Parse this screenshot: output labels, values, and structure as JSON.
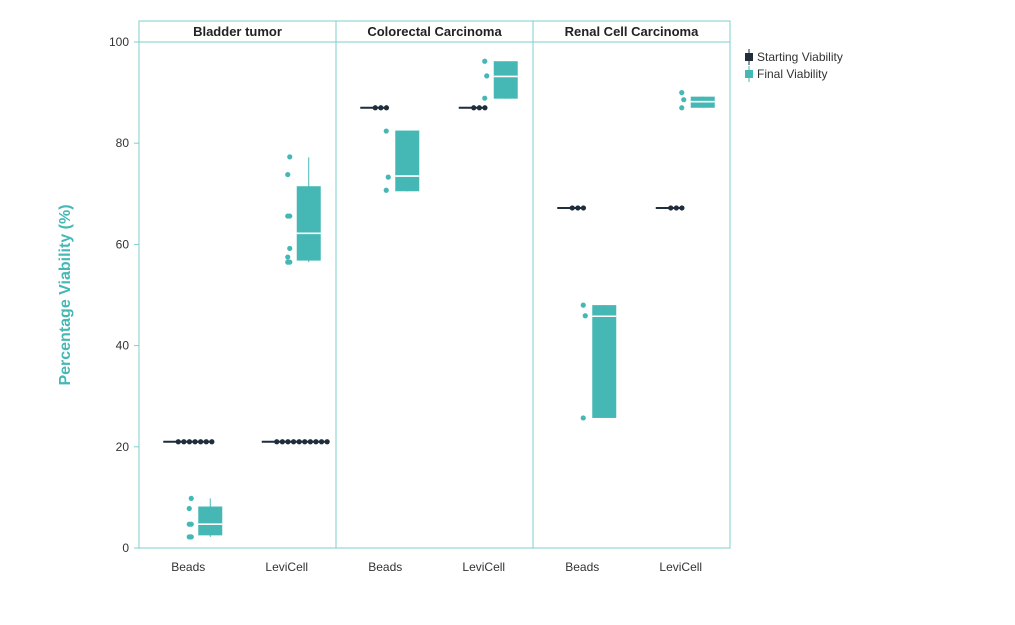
{
  "chart_data": {
    "type": "box",
    "title": "",
    "ylabel": "Percentage Viability (%)",
    "xlabel": "",
    "ylim": [
      0,
      100
    ],
    "yticks": [
      0,
      20,
      40,
      60,
      80,
      100
    ],
    "grid": false,
    "legend_position": "top-right",
    "categories": [
      "Beads",
      "LeviCell"
    ],
    "panels": [
      {
        "name": "Bladder tumor",
        "groups": [
          {
            "category": "Beads",
            "starting_viability": {
              "value": 21,
              "points": [
                21,
                21,
                21,
                21,
                21,
                21,
                21
              ]
            },
            "final_viability": {
              "whisker_low": 2.2,
              "q1": 2.5,
              "median": 4.7,
              "q3": 8.2,
              "whisker_high": 9.8,
              "points": [
                2.2,
                2.2,
                4.7,
                4.7,
                7.8,
                9.8
              ]
            }
          },
          {
            "category": "LeviCell",
            "starting_viability": {
              "value": 21,
              "points": [
                21,
                21,
                21,
                21,
                21,
                21,
                21,
                21,
                21,
                21
              ]
            },
            "final_viability": {
              "whisker_low": 56.5,
              "q1": 56.8,
              "median": 62.2,
              "q3": 71.5,
              "whisker_high": 77.2,
              "points": [
                56.5,
                56.5,
                57.5,
                59.2,
                65.6,
                65.6,
                73.8,
                77.3
              ]
            }
          }
        ]
      },
      {
        "name": "Colorectal Carcinoma",
        "groups": [
          {
            "category": "Beads",
            "starting_viability": {
              "value": 87,
              "points": [
                87,
                87,
                87
              ]
            },
            "final_viability": {
              "whisker_low": 70.5,
              "q1": 70.5,
              "median": 73.5,
              "q3": 82.5,
              "whisker_high": 82.5,
              "points": [
                70.7,
                73.3,
                82.4
              ]
            }
          },
          {
            "category": "LeviCell",
            "starting_viability": {
              "value": 87,
              "points": [
                87,
                87,
                87
              ]
            },
            "final_viability": {
              "whisker_low": 88.8,
              "q1": 88.8,
              "median": 93.2,
              "q3": 96.2,
              "whisker_high": 96.2,
              "points": [
                88.9,
                93.3,
                96.2
              ]
            }
          }
        ]
      },
      {
        "name": "Renal Cell Carcinoma",
        "groups": [
          {
            "category": "Beads",
            "starting_viability": {
              "value": 67.2,
              "points": [
                67.2,
                67.2,
                67.2
              ]
            },
            "final_viability": {
              "whisker_low": 25.7,
              "q1": 25.7,
              "median": 45.8,
              "q3": 48.0,
              "whisker_high": 48.0,
              "points": [
                25.7,
                45.9,
                48.0
              ]
            }
          },
          {
            "category": "LeviCell",
            "starting_viability": {
              "value": 67.2,
              "points": [
                67.2,
                67.2,
                67.2
              ]
            },
            "final_viability": {
              "whisker_low": 87.0,
              "q1": 87.0,
              "median": 88.2,
              "q3": 89.2,
              "whisker_high": 89.2,
              "points": [
                87.0,
                88.6,
                90.0
              ]
            }
          }
        ]
      }
    ],
    "legend": [
      {
        "name": "Starting Viability",
        "color": "#1f2d3d"
      },
      {
        "name": "Final Viability",
        "color": "#45b8b6"
      }
    ],
    "colors": {
      "starting": "#1f2d3d",
      "final": "#45b8b6",
      "frame": "#7fcfcc",
      "ylabel": "#45b8b6"
    }
  }
}
